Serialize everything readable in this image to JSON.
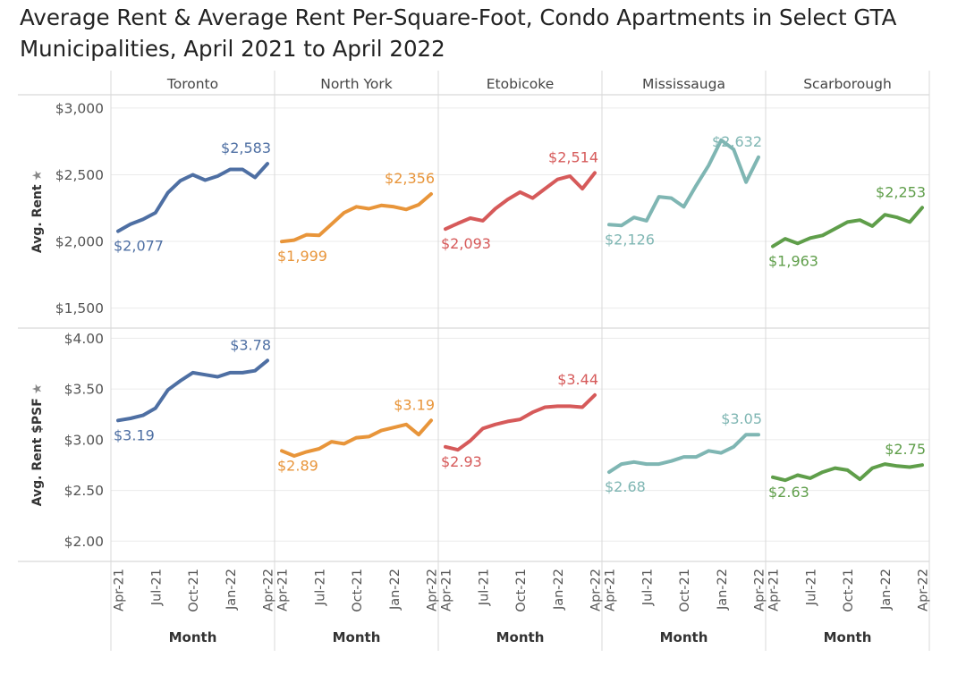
{
  "title": {
    "line1": "Average Rent & Average Rent Per-Square-Foot, Condo Apartments in Select GTA",
    "line2": "Municipalities, April 2021 to April 2022"
  },
  "chart_data": {
    "type": "line",
    "layout": "small-multiples",
    "title": "Average Rent & Average Rent Per-Square-Foot, Condo Apartments in Select GTA Municipalities, April 2021 to April 2022",
    "x": [
      "Apr-21",
      "May-21",
      "Jun-21",
      "Jul-21",
      "Aug-21",
      "Sep-21",
      "Oct-21",
      "Nov-21",
      "Dec-21",
      "Jan-22",
      "Feb-22",
      "Mar-22",
      "Apr-22"
    ],
    "x_tick_labels": [
      "Apr-21",
      "Jul-21",
      "Oct-21",
      "Jan-22",
      "Apr-22"
    ],
    "xlabel": "Month",
    "columns": [
      {
        "name": "Toronto",
        "color": "#4e6fa3"
      },
      {
        "name": "North York",
        "color": "#e8953a"
      },
      {
        "name": "Etobicoke",
        "color": "#d65a5a"
      },
      {
        "name": "Mississauga",
        "color": "#7fb6b3"
      },
      {
        "name": "Scarborough",
        "color": "#5f9e4a"
      }
    ],
    "rows": [
      {
        "ylabel": "Avg. Rent",
        "ylim": [
          1350,
          3100
        ],
        "ticks": [
          3000,
          2500,
          2000,
          1500
        ],
        "tick_labels": [
          "$3,000",
          "$2,500",
          "$2,000",
          "$1,500"
        ],
        "series": [
          {
            "values": [
              2077,
              2130,
              2165,
              2215,
              2365,
              2455,
              2500,
              2460,
              2490,
              2540,
              2540,
              2480,
              2583
            ],
            "start_label": "$2,077",
            "end_label": "$2,583"
          },
          {
            "values": [
              1999,
              2010,
              2050,
              2045,
              2130,
              2215,
              2260,
              2245,
              2270,
              2260,
              2240,
              2275,
              2356
            ],
            "start_label": "$1,999",
            "end_label": "$2,356"
          },
          {
            "values": [
              2093,
              2135,
              2175,
              2155,
              2245,
              2315,
              2370,
              2325,
              2395,
              2465,
              2490,
              2395,
              2514
            ],
            "start_label": "$2,093",
            "end_label": "$2,514"
          },
          {
            "values": [
              2126,
              2120,
              2180,
              2155,
              2335,
              2325,
              2260,
              2420,
              2570,
              2760,
              2690,
              2445,
              2632
            ],
            "start_label": "$2,126",
            "end_label": "$2,632"
          },
          {
            "values": [
              1963,
              2020,
              1985,
              2025,
              2045,
              2095,
              2145,
              2160,
              2115,
              2200,
              2180,
              2145,
              2253
            ],
            "start_label": "$1,963",
            "end_label": "$2,253"
          }
        ]
      },
      {
        "ylabel": "Avg. Rent $PSF",
        "ylim": [
          1.8,
          4.1
        ],
        "ticks": [
          4.0,
          3.5,
          3.0,
          2.5,
          2.0
        ],
        "tick_labels": [
          "$4.00",
          "$3.50",
          "$3.00",
          "$2.50",
          "$2.00"
        ],
        "series": [
          {
            "values": [
              3.19,
              3.21,
              3.24,
              3.31,
              3.49,
              3.58,
              3.66,
              3.64,
              3.62,
              3.66,
              3.66,
              3.68,
              3.78
            ],
            "start_label": "$3.19",
            "end_label": "$3.78"
          },
          {
            "values": [
              2.89,
              2.84,
              2.88,
              2.91,
              2.98,
              2.96,
              3.02,
              3.03,
              3.09,
              3.12,
              3.15,
              3.05,
              3.19
            ],
            "start_label": "$2.89",
            "end_label": "$3.19"
          },
          {
            "values": [
              2.93,
              2.9,
              2.99,
              3.11,
              3.15,
              3.18,
              3.2,
              3.27,
              3.32,
              3.33,
              3.33,
              3.32,
              3.44
            ],
            "start_label": "$2.93",
            "end_label": "$3.44"
          },
          {
            "values": [
              2.68,
              2.76,
              2.78,
              2.76,
              2.76,
              2.79,
              2.83,
              2.83,
              2.89,
              2.87,
              2.93,
              3.05,
              3.05
            ],
            "start_label": "$2.68",
            "end_label": "$3.05"
          },
          {
            "values": [
              2.63,
              2.6,
              2.65,
              2.62,
              2.68,
              2.72,
              2.7,
              2.61,
              2.72,
              2.76,
              2.74,
              2.73,
              2.75
            ],
            "start_label": "$2.63",
            "end_label": "$2.75"
          }
        ]
      }
    ]
  }
}
